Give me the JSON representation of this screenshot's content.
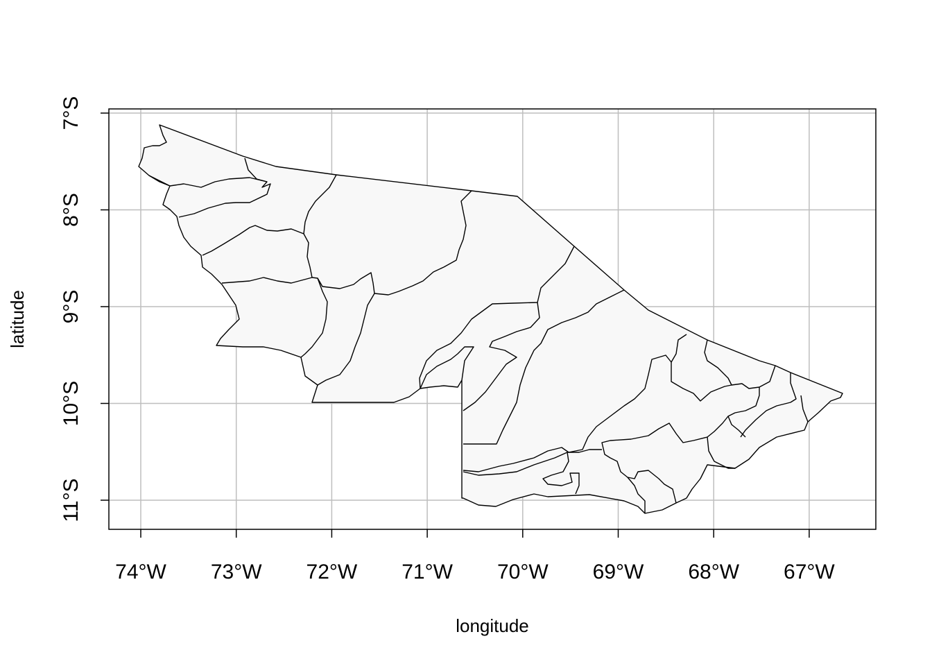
{
  "chart_data": {
    "type": "map",
    "xlabel": "longitude",
    "ylabel": "latitude",
    "xlim": [
      -74.33,
      -66.25
    ],
    "ylim": [
      -11.3,
      -6.95
    ],
    "grid": true,
    "x_ticks": [
      {
        "value": -74,
        "label": "74°W"
      },
      {
        "value": -73,
        "label": "73°W"
      },
      {
        "value": -72,
        "label": "72°W"
      },
      {
        "value": -71,
        "label": "71°W"
      },
      {
        "value": -70,
        "label": "70°W"
      },
      {
        "value": -69,
        "label": "69°W"
      },
      {
        "value": -68,
        "label": "68°W"
      },
      {
        "value": -67,
        "label": "67°W"
      }
    ],
    "y_ticks": [
      {
        "value": -7,
        "label": "7°S"
      },
      {
        "value": -8,
        "label": "8°S"
      },
      {
        "value": -9,
        "label": "9°S"
      },
      {
        "value": -10,
        "label": "10°S"
      },
      {
        "value": -11,
        "label": "11°S"
      }
    ],
    "region_fill": "#f8f8f8",
    "border_color": "#000000",
    "grid_color": "#bebebe"
  }
}
